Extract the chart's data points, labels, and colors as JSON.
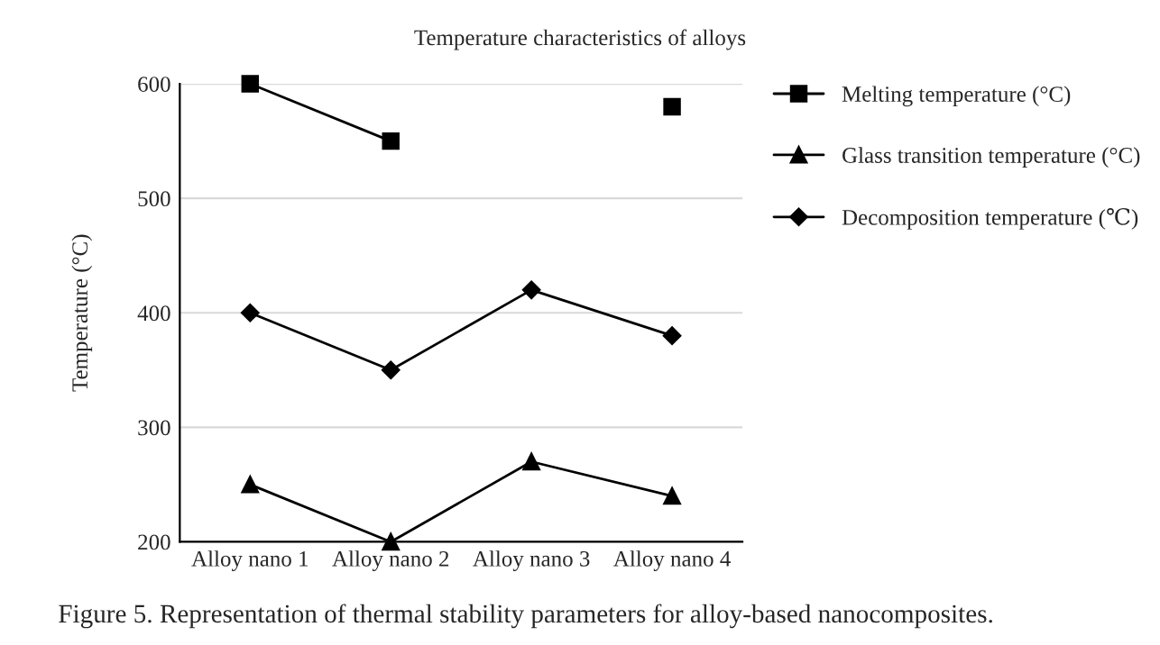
{
  "chart_data": {
    "type": "line",
    "title": "Temperature characteristics of alloys",
    "ylabel": "Temperature (°C)",
    "categories": [
      "Alloy nano 1",
      "Alloy nano 2",
      "Alloy nano 3",
      "Alloy nano 4"
    ],
    "series": [
      {
        "name": "Melting temperature (°C)",
        "color": "#000000",
        "marker": "square",
        "values": [
          600,
          550,
          null,
          580
        ]
      },
      {
        "name": "Glass transition temperature (°C)",
        "color": "#000000",
        "marker": "triangle",
        "values": [
          250,
          200,
          270,
          240
        ]
      },
      {
        "name": "Decomposition temperature (℃)",
        "color": "#000000",
        "marker": "diamond",
        "values": [
          400,
          350,
          420,
          380
        ]
      }
    ],
    "ylim": [
      200,
      600
    ],
    "yticks": [
      200,
      300,
      400,
      500,
      600
    ],
    "grid": "y",
    "legend": "right",
    "annotations": [
      "Figure 5. Representation of thermal stability parameters for alloy-based nanocomposites."
    ]
  }
}
